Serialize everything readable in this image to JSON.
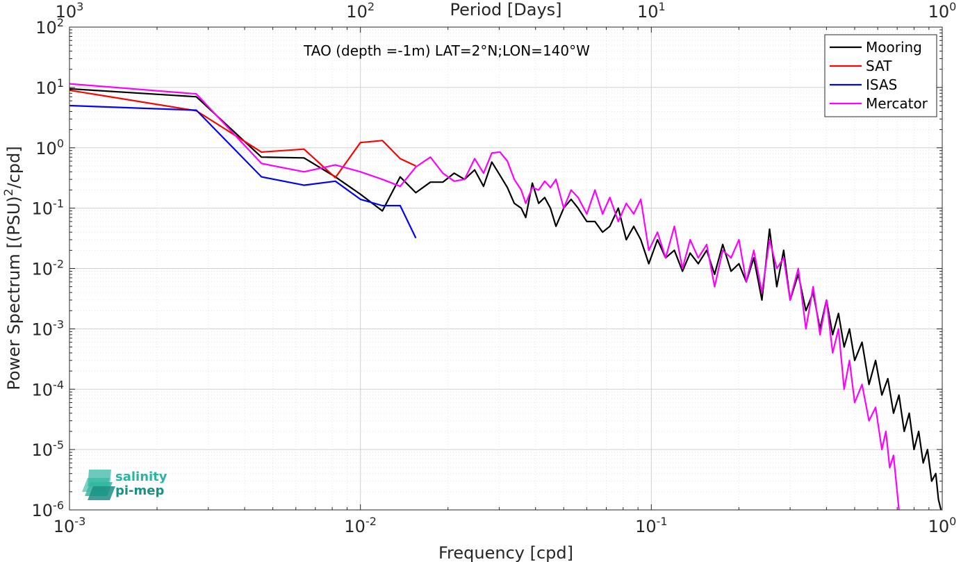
{
  "chart_data": {
    "type": "line",
    "title": "TAO (depth =-1m) LAT=2°N;LON=140°W",
    "xlabel": "Frequency [cpd]",
    "ylabel": "Power Spectrum [(PSU)²/cpd]",
    "ylabel_main": "Power Spectrum [(PSU)",
    "ylabel_sup": "2",
    "ylabel_tail": "/cpd]",
    "top_axis_label": "Period [Days]",
    "xscale": "log",
    "yscale": "log",
    "xlim": [
      0.001,
      1
    ],
    "ylim": [
      1e-06,
      100
    ],
    "grid": true,
    "legend_position": "top-right",
    "x_ticks": [
      {
        "value": 0.001,
        "base": "10",
        "exp": "-3"
      },
      {
        "value": 0.01,
        "base": "10",
        "exp": "-2"
      },
      {
        "value": 0.1,
        "base": "10",
        "exp": "-1"
      },
      {
        "value": 1,
        "base": "10",
        "exp": "0"
      }
    ],
    "top_ticks": [
      {
        "value": 1000,
        "base": "10",
        "exp": "3"
      },
      {
        "value": 100,
        "base": "10",
        "exp": "2"
      },
      {
        "value": 10,
        "base": "10",
        "exp": "1"
      },
      {
        "value": 1,
        "base": "10",
        "exp": "0"
      }
    ],
    "y_ticks": [
      {
        "value": 100,
        "base": "10",
        "exp": "2"
      },
      {
        "value": 10,
        "base": "10",
        "exp": "1"
      },
      {
        "value": 1,
        "base": "10",
        "exp": "0"
      },
      {
        "value": 0.1,
        "base": "10",
        "exp": "-1"
      },
      {
        "value": 0.01,
        "base": "10",
        "exp": "-2"
      },
      {
        "value": 0.001,
        "base": "10",
        "exp": "-3"
      },
      {
        "value": 0.0001,
        "base": "10",
        "exp": "-4"
      },
      {
        "value": 1e-05,
        "base": "10",
        "exp": "-5"
      },
      {
        "value": 1e-06,
        "base": "10",
        "exp": "-6"
      }
    ],
    "series": [
      {
        "name": "Mooring",
        "color": "#000000",
        "points": [
          [
            0.001,
            9.5
          ],
          [
            0.00273,
            7.0
          ],
          [
            0.00457,
            0.7
          ],
          [
            0.0064,
            0.68
          ],
          [
            0.0082,
            0.33
          ],
          [
            0.01,
            0.17
          ],
          [
            0.0119,
            0.09
          ],
          [
            0.0137,
            0.33
          ],
          [
            0.0155,
            0.18
          ],
          [
            0.0174,
            0.27
          ],
          [
            0.0192,
            0.27
          ],
          [
            0.021,
            0.38
          ],
          [
            0.0228,
            0.3
          ],
          [
            0.0247,
            0.43
          ],
          [
            0.0265,
            0.23
          ],
          [
            0.0283,
            0.58
          ],
          [
            0.0302,
            0.35
          ],
          [
            0.032,
            0.22
          ],
          [
            0.0338,
            0.12
          ],
          [
            0.0357,
            0.1
          ],
          [
            0.037,
            0.07
          ],
          [
            0.039,
            0.26
          ],
          [
            0.041,
            0.12
          ],
          [
            0.043,
            0.15
          ],
          [
            0.045,
            0.1
          ],
          [
            0.047,
            0.05
          ],
          [
            0.05,
            0.1
          ],
          [
            0.053,
            0.14
          ],
          [
            0.056,
            0.1
          ],
          [
            0.06,
            0.06
          ],
          [
            0.064,
            0.06
          ],
          [
            0.068,
            0.04
          ],
          [
            0.072,
            0.05
          ],
          [
            0.077,
            0.1
          ],
          [
            0.082,
            0.03
          ],
          [
            0.087,
            0.05
          ],
          [
            0.092,
            0.03
          ],
          [
            0.098,
            0.012
          ],
          [
            0.105,
            0.03
          ],
          [
            0.112,
            0.015
          ],
          [
            0.12,
            0.02
          ],
          [
            0.128,
            0.009
          ],
          [
            0.136,
            0.018
          ],
          [
            0.145,
            0.012
          ],
          [
            0.155,
            0.02
          ],
          [
            0.165,
            0.008
          ],
          [
            0.176,
            0.025
          ],
          [
            0.188,
            0.009
          ],
          [
            0.2,
            0.012
          ],
          [
            0.212,
            0.006
          ],
          [
            0.225,
            0.015
          ],
          [
            0.24,
            0.003
          ],
          [
            0.255,
            0.045
          ],
          [
            0.27,
            0.005
          ],
          [
            0.285,
            0.02
          ],
          [
            0.3,
            0.003
          ],
          [
            0.32,
            0.008
          ],
          [
            0.34,
            0.002
          ],
          [
            0.36,
            0.004
          ],
          [
            0.38,
            0.001
          ],
          [
            0.4,
            0.003
          ],
          [
            0.42,
            0.0008
          ],
          [
            0.44,
            0.0018
          ],
          [
            0.46,
            0.0005
          ],
          [
            0.48,
            0.001
          ],
          [
            0.5,
            0.0003
          ],
          [
            0.53,
            0.0006
          ],
          [
            0.56,
            0.00012
          ],
          [
            0.59,
            0.0003
          ],
          [
            0.62,
            8e-05
          ],
          [
            0.65,
            0.00015
          ],
          [
            0.68,
            4e-05
          ],
          [
            0.71,
            8e-05
          ],
          [
            0.74,
            2e-05
          ],
          [
            0.77,
            4e-05
          ],
          [
            0.8,
            1e-05
          ],
          [
            0.83,
            2e-05
          ],
          [
            0.86,
            6e-06
          ],
          [
            0.89,
            1e-05
          ],
          [
            0.92,
            3e-06
          ],
          [
            0.95,
            4e-06
          ],
          [
            0.97,
            1.5e-06
          ],
          [
            0.99,
            1e-06
          ]
        ]
      },
      {
        "name": "SAT",
        "color": "#ff0000",
        "points": [
          [
            0.001,
            9.0
          ],
          [
            0.00273,
            4.1
          ],
          [
            0.00457,
            0.85
          ],
          [
            0.0064,
            0.95
          ],
          [
            0.0082,
            0.32
          ],
          [
            0.01,
            1.22
          ],
          [
            0.0119,
            1.32
          ],
          [
            0.0137,
            0.66
          ],
          [
            0.0155,
            0.5
          ]
        ]
      },
      {
        "name": "ISAS",
        "color": "#0000ff",
        "points": [
          [
            0.001,
            5.0
          ],
          [
            0.00273,
            4.2
          ],
          [
            0.00457,
            0.33
          ],
          [
            0.0064,
            0.24
          ],
          [
            0.0082,
            0.28
          ],
          [
            0.01,
            0.14
          ],
          [
            0.0119,
            0.11
          ],
          [
            0.0137,
            0.11
          ],
          [
            0.0155,
            0.032
          ]
        ]
      },
      {
        "name": "Mercator",
        "color": "#ff00ff",
        "points": [
          [
            0.001,
            11.5
          ],
          [
            0.00273,
            7.8
          ],
          [
            0.00457,
            0.55
          ],
          [
            0.0064,
            0.4
          ],
          [
            0.0082,
            0.52
          ],
          [
            0.01,
            0.4
          ],
          [
            0.0119,
            0.3
          ],
          [
            0.0137,
            0.23
          ],
          [
            0.0155,
            0.48
          ],
          [
            0.0174,
            0.7
          ],
          [
            0.0192,
            0.38
          ],
          [
            0.021,
            0.28
          ],
          [
            0.0228,
            0.3
          ],
          [
            0.0247,
            0.66
          ],
          [
            0.0265,
            0.38
          ],
          [
            0.0283,
            0.82
          ],
          [
            0.0302,
            0.85
          ],
          [
            0.032,
            0.6
          ],
          [
            0.0338,
            0.3
          ],
          [
            0.0357,
            0.2
          ],
          [
            0.037,
            0.12
          ],
          [
            0.039,
            0.22
          ],
          [
            0.041,
            0.2
          ],
          [
            0.043,
            0.28
          ],
          [
            0.045,
            0.22
          ],
          [
            0.047,
            0.3
          ],
          [
            0.05,
            0.1
          ],
          [
            0.053,
            0.2
          ],
          [
            0.056,
            0.15
          ],
          [
            0.06,
            0.08
          ],
          [
            0.064,
            0.2
          ],
          [
            0.068,
            0.08
          ],
          [
            0.072,
            0.15
          ],
          [
            0.077,
            0.06
          ],
          [
            0.082,
            0.12
          ],
          [
            0.087,
            0.08
          ],
          [
            0.092,
            0.14
          ],
          [
            0.098,
            0.02
          ],
          [
            0.105,
            0.04
          ],
          [
            0.112,
            0.015
          ],
          [
            0.12,
            0.05
          ],
          [
            0.128,
            0.01
          ],
          [
            0.136,
            0.03
          ],
          [
            0.145,
            0.015
          ],
          [
            0.155,
            0.025
          ],
          [
            0.165,
            0.005
          ],
          [
            0.176,
            0.02
          ],
          [
            0.188,
            0.015
          ],
          [
            0.2,
            0.03
          ],
          [
            0.212,
            0.006
          ],
          [
            0.225,
            0.02
          ],
          [
            0.24,
            0.004
          ],
          [
            0.255,
            0.03
          ],
          [
            0.27,
            0.01
          ],
          [
            0.285,
            0.015
          ],
          [
            0.3,
            0.003
          ],
          [
            0.32,
            0.01
          ],
          [
            0.34,
            0.001
          ],
          [
            0.36,
            0.005
          ],
          [
            0.38,
            0.0008
          ],
          [
            0.4,
            0.003
          ],
          [
            0.42,
            0.0004
          ],
          [
            0.44,
            0.001
          ],
          [
            0.46,
            0.0001
          ],
          [
            0.48,
            0.0003
          ],
          [
            0.5,
            6e-05
          ],
          [
            0.53,
            0.00012
          ],
          [
            0.56,
            3e-05
          ],
          [
            0.59,
            5e-05
          ],
          [
            0.62,
            1e-05
          ],
          [
            0.64,
            2e-05
          ],
          [
            0.66,
            5e-06
          ],
          [
            0.68,
            8e-06
          ],
          [
            0.7,
            2e-06
          ],
          [
            0.71,
            1e-06
          ]
        ]
      }
    ]
  },
  "logo": {
    "line1": "salinity",
    "line2": "pi-mep",
    "colors": [
      "#7fd1c0",
      "#3fb8a4",
      "#1a8f86"
    ]
  }
}
